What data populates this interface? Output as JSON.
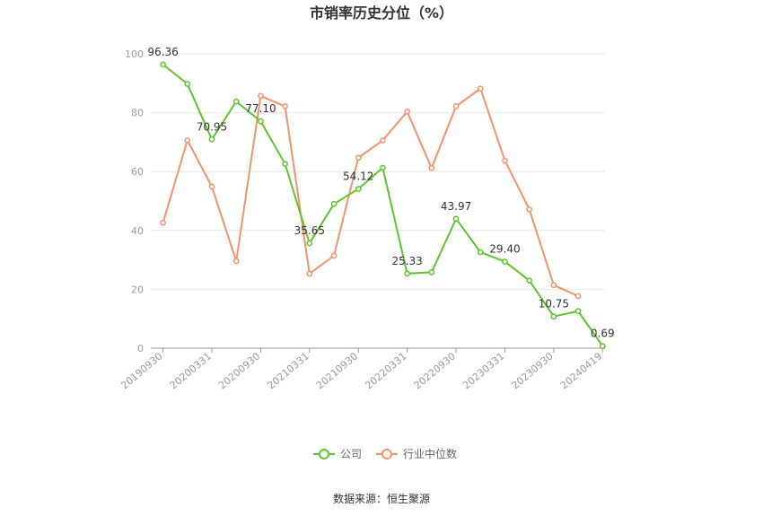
{
  "chart_data": {
    "type": "line",
    "title": "市销率历史分位（%）",
    "x": [
      "20190930",
      "20191231",
      "20200331",
      "20200630",
      "20200930",
      "20201231",
      "20210331",
      "20210630",
      "20210930",
      "20211231",
      "20220331",
      "20220630",
      "20220930",
      "20221231",
      "20230331",
      "20230630",
      "20230930",
      "20231231",
      "20240419"
    ],
    "x_tick_labels": [
      "20190930",
      "20200331",
      "20200930",
      "20210331",
      "20210930",
      "20220331",
      "20220930",
      "20230331",
      "20230930",
      "20240419"
    ],
    "ylim": [
      0,
      100
    ],
    "y_ticks": [
      0,
      20,
      40,
      60,
      80,
      100
    ],
    "grid": true,
    "legend_position": "bottom-center",
    "series": [
      {
        "name": "公司",
        "color": "#5ec42b",
        "values": [
          96.36,
          89.8,
          70.95,
          83.8,
          77.1,
          62.6,
          35.65,
          49.0,
          54.12,
          61.3,
          25.33,
          25.8,
          43.97,
          32.6,
          29.4,
          23.0,
          10.75,
          12.6,
          0.69
        ]
      },
      {
        "name": "行业中位数",
        "color": "#f4916a",
        "values": [
          42.6,
          70.6,
          54.9,
          29.6,
          85.7,
          82.2,
          25.3,
          31.4,
          64.7,
          70.6,
          80.4,
          61.2,
          82.2,
          88.2,
          63.7,
          47.2,
          21.4,
          17.7,
          null
        ]
      }
    ],
    "data_labels": [
      {
        "series": 0,
        "index": 0,
        "text": "96.36"
      },
      {
        "series": 0,
        "index": 2,
        "text": "70.95"
      },
      {
        "series": 0,
        "index": 4,
        "text": "77.10"
      },
      {
        "series": 0,
        "index": 6,
        "text": "35.65"
      },
      {
        "series": 0,
        "index": 8,
        "text": "54.12"
      },
      {
        "series": 0,
        "index": 10,
        "text": "25.33"
      },
      {
        "series": 0,
        "index": 12,
        "text": "43.97"
      },
      {
        "series": 0,
        "index": 14,
        "text": "29.40"
      },
      {
        "series": 0,
        "index": 16,
        "text": "10.75"
      },
      {
        "series": 0,
        "index": 18,
        "text": "0.69"
      }
    ]
  },
  "legend": [
    "公司",
    "行业中位数"
  ],
  "source_text": "数据来源：恒生聚源"
}
